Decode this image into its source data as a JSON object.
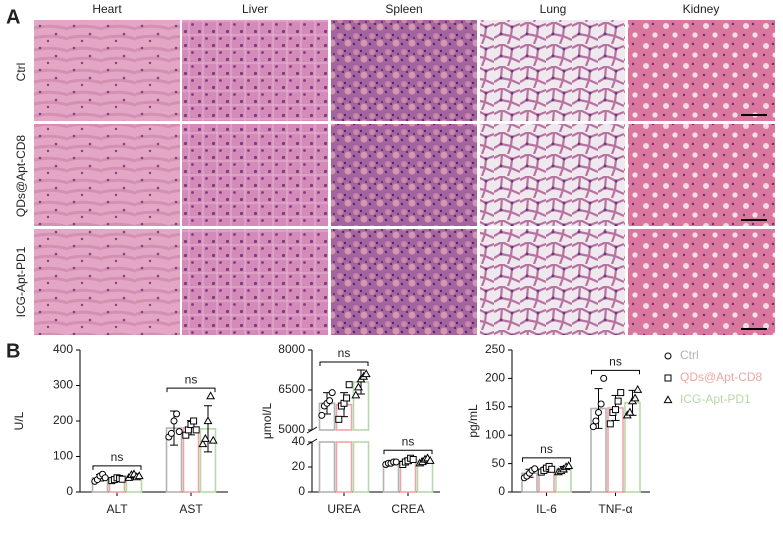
{
  "panel_labels": [
    "A",
    "B"
  ],
  "histology": {
    "columns": [
      "Heart",
      "Liver",
      "Spleen",
      "Lung",
      "Kidney"
    ],
    "rows": [
      "Ctrl",
      "QDs@Apt-CD8",
      "ICG-Apt-PD1"
    ]
  },
  "chart_data": [
    {
      "type": "bar",
      "ylabel": "U/L",
      "categories": [
        "ALT",
        "AST"
      ],
      "annotations": [
        "ns",
        "ns"
      ],
      "ylim": [
        0,
        400
      ],
      "yticks": [
        0,
        100,
        200,
        300,
        400
      ],
      "series": [
        {
          "color": "#b3b3b3",
          "marker": "circle",
          "values": [
            40,
            180
          ],
          "errors": [
            9,
            48
          ],
          "points": [
            [
              30,
              35,
              45,
              50,
              40
            ],
            [
              155,
              165,
              200,
              220,
              170
            ]
          ]
        },
        {
          "color": "#f0a5a5",
          "marker": "square",
          "values": [
            37,
            181
          ],
          "errors": [
            5,
            20
          ],
          "points": [
            [
              32,
              35,
              40,
              38,
              36
            ],
            [
              160,
              175,
              190,
              200,
              175
            ]
          ]
        },
        {
          "color": "#b7d8a8",
          "marker": "triangle",
          "values": [
            45,
            178
          ],
          "errors": [
            6,
            65
          ],
          "points": [
            [
              40,
              48,
              50,
              42,
              45
            ],
            [
              135,
              150,
              200,
              270,
              145
            ]
          ]
        }
      ]
    },
    {
      "type": "bar",
      "ylabel": "μmol/L",
      "categories": [
        "UREA",
        "CREA"
      ],
      "annotations": [
        "ns",
        "ns"
      ],
      "segments": [
        {
          "ylim": [
            0,
            40
          ],
          "yticks": [
            0,
            20,
            40
          ]
        },
        {
          "ylim": [
            5000,
            8000
          ],
          "yticks": [
            5000,
            6500,
            8000
          ]
        }
      ],
      "series": [
        {
          "color": "#b3b3b3",
          "marker": "circle",
          "values": [
            6000,
            23
          ],
          "errors": [
            400,
            1
          ],
          "points": [
            [
              5550,
              5900,
              6000,
              6100,
              6400
            ],
            [
              22,
              23,
              23,
              24,
              24
            ]
          ]
        },
        {
          "color": "#f0a5a5",
          "marker": "square",
          "values": [
            5950,
            25
          ],
          "errors": [
            450,
            2
          ],
          "points": [
            [
              5400,
              5900,
              6000,
              6200,
              6700
            ],
            [
              22,
              24,
              25,
              27,
              26
            ]
          ]
        },
        {
          "color": "#b7d8a8",
          "marker": "triangle",
          "values": [
            6800,
            25
          ],
          "errors": [
            450,
            2
          ],
          "points": [
            [
              6300,
              6600,
              6900,
              7000,
              7100
            ],
            [
              23,
              24,
              26,
              27,
              25
            ]
          ]
        }
      ]
    },
    {
      "type": "bar",
      "ylabel": "pg/mL",
      "categories": [
        "IL-6",
        "TNF-α"
      ],
      "annotations": [
        "ns",
        "ns"
      ],
      "ylim": [
        0,
        250
      ],
      "yticks": [
        0,
        50,
        100,
        150,
        200,
        250
      ],
      "series": [
        {
          "name": "Ctrl",
          "color": "#b3b3b3",
          "marker": "circle",
          "values": [
            33,
            147
          ],
          "errors": [
            7,
            35
          ],
          "points": [
            [
              25,
              28,
              33,
              38,
              41
            ],
            [
              115,
              125,
              140,
              155,
              200
            ]
          ]
        },
        {
          "name": "QDs@Apt-CD8",
          "color": "#f0a5a5",
          "marker": "square",
          "values": [
            40,
            148
          ],
          "errors": [
            5,
            22
          ],
          "points": [
            [
              35,
              38,
              42,
              45,
              40
            ],
            [
              120,
              140,
              145,
              160,
              175
            ]
          ]
        },
        {
          "name": "ICG-Apt-PD1",
          "color": "#b7d8a8",
          "marker": "triangle",
          "values": [
            40,
            157
          ],
          "errors": [
            5,
            22
          ],
          "points": [
            [
              35,
              37,
              40,
              44,
              46
            ],
            [
              135,
              140,
              160,
              165,
              180
            ]
          ]
        }
      ]
    }
  ]
}
